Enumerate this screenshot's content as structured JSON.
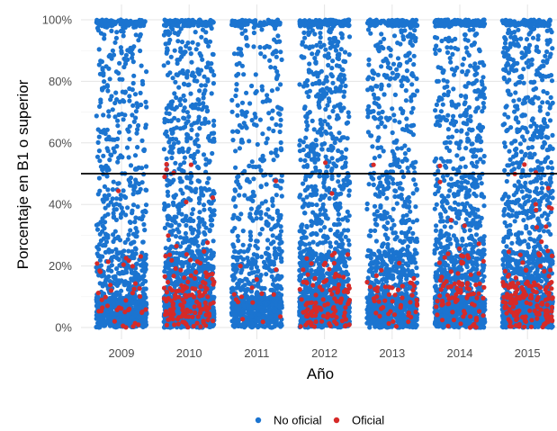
{
  "chart_data": {
    "type": "scatter",
    "title": "",
    "xlabel": "Año",
    "ylabel": "Porcentaje en B1 o superior",
    "categories": [
      "2009",
      "2010",
      "2011",
      "2012",
      "2013",
      "2014",
      "2015"
    ],
    "y_ticks": [
      "0%",
      "20%",
      "40%",
      "60%",
      "80%",
      "100%"
    ],
    "ylim": [
      0,
      100
    ],
    "y_unit": "%",
    "reference_line": {
      "y": 50,
      "color": "#000000"
    },
    "jittered": true,
    "grid": true,
    "legend_position": "bottom",
    "series": [
      {
        "name": "No oficial",
        "color": "#1b74d0",
        "approx_point_counts": [
          1100,
          1500,
          900,
          1600,
          1200,
          1400,
          1600
        ],
        "distribution_bands_percent": [
          {
            "range": [
              0,
              10
            ],
            "share": 0.44
          },
          {
            "range": [
              10,
              25
            ],
            "share": 0.18
          },
          {
            "range": [
              25,
              50
            ],
            "share": 0.13
          },
          {
            "range": [
              50,
              98
            ],
            "share": 0.17
          },
          {
            "range": [
              98,
              100
            ],
            "share": 0.08
          }
        ]
      },
      {
        "name": "Oficial",
        "color": "#d62a28",
        "approx_point_counts": [
          40,
          140,
          15,
          110,
          50,
          90,
          170
        ],
        "distribution_bands_percent": [
          {
            "range": [
              0,
              15
            ],
            "share": 0.82
          },
          {
            "range": [
              15,
              25
            ],
            "share": 0.12
          },
          {
            "range": [
              25,
              55
            ],
            "share": 0.06
          }
        ]
      }
    ]
  }
}
